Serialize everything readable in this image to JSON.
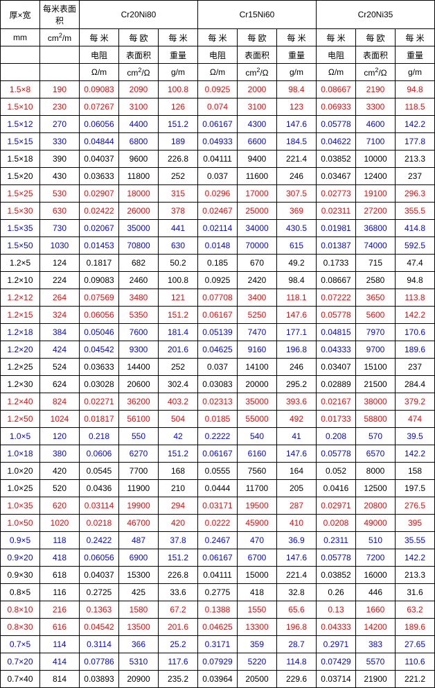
{
  "header": {
    "col1": "厚×宽",
    "col2": "每米表面积",
    "group1": "Cr20Ni80",
    "group2": "Cr15Ni60",
    "group3": "Cr20Ni35",
    "unit1": "mm",
    "unit2_html": "cm<span class='sup'>2</span>/m",
    "sub_a": "每 米",
    "sub_b": "每 欧",
    "sub_c": "每 米",
    "line2_a": "电阻",
    "line2_b": "表面积",
    "line2_c": "重量",
    "line3_a": "Ω/m",
    "line3_b_html": "cm<span class='sup'>2</span>/Ω",
    "line3_c": "g/m"
  },
  "colors": {
    "black": "#000000",
    "red": "#ff0000",
    "blue": "#0000ff"
  },
  "rows": [
    {
      "c": "red",
      "d": [
        "1.5×8",
        "190",
        "0.09083",
        "2090",
        "100.8",
        "0.0925",
        "2000",
        "98.4",
        "0.08667",
        "2190",
        "94.8"
      ]
    },
    {
      "c": "red",
      "d": [
        "1.5×10",
        "230",
        "0.07267",
        "3100",
        "126",
        "0.074",
        "3100",
        "123",
        "0.06933",
        "3300",
        "118.5"
      ]
    },
    {
      "c": "blue",
      "d": [
        "1.5×12",
        "270",
        "0.06056",
        "4400",
        "151.2",
        "0.06167",
        "4300",
        "147.6",
        "0.05778",
        "4600",
        "142.2"
      ]
    },
    {
      "c": "blue",
      "d": [
        "1.5×15",
        "330",
        "0.04844",
        "6800",
        "189",
        "0.04933",
        "6600",
        "184.5",
        "0.04622",
        "7100",
        "177.8"
      ]
    },
    {
      "c": "black",
      "d": [
        "1.5×18",
        "390",
        "0.04037",
        "9600",
        "226.8",
        "0.04111",
        "9400",
        "221.4",
        "0.03852",
        "10000",
        "213.3"
      ]
    },
    {
      "c": "black",
      "d": [
        "1.5×20",
        "430",
        "0.03633",
        "11800",
        "252",
        "0.037",
        "11600",
        "246",
        "0.03467",
        "12400",
        "237"
      ]
    },
    {
      "c": "red",
      "d": [
        "1.5×25",
        "530",
        "0.02907",
        "18000",
        "315",
        "0.0296",
        "17000",
        "307.5",
        "0.02773",
        "19100",
        "296.3"
      ]
    },
    {
      "c": "red",
      "d": [
        "1.5×30",
        "630",
        "0.02422",
        "26000",
        "378",
        "0.02467",
        "25000",
        "369",
        "0.02311",
        "27200",
        "355.5"
      ]
    },
    {
      "c": "blue",
      "d": [
        "1.5×35",
        "730",
        "0.02067",
        "35000",
        "441",
        "0.02114",
        "34000",
        "430.5",
        "0.01981",
        "36800",
        "414.8"
      ]
    },
    {
      "c": "blue",
      "d": [
        "1.5×50",
        "1030",
        "0.01453",
        "70800",
        "630",
        "0.0148",
        "70000",
        "615",
        "0.01387",
        "74000",
        "592.5"
      ]
    },
    {
      "c": "black",
      "d": [
        "1.2×5",
        "124",
        "0.1817",
        "682",
        "50.2",
        "0.185",
        "670",
        "49.2",
        "0.1733",
        "715",
        "47.4"
      ]
    },
    {
      "c": "black",
      "d": [
        "1.2×10",
        "224",
        "0.09083",
        "2460",
        "100.8",
        "0.0925",
        "2420",
        "98.4",
        "0.08667",
        "2580",
        "94.8"
      ]
    },
    {
      "c": "red",
      "d": [
        "1.2×12",
        "264",
        "0.07569",
        "3480",
        "121",
        "0.07708",
        "3400",
        "118.1",
        "0.07222",
        "3650",
        "113.8"
      ]
    },
    {
      "c": "red",
      "d": [
        "1.2×15",
        "324",
        "0.06056",
        "5350",
        "151.2",
        "0.06167",
        "5250",
        "147.6",
        "0.05778",
        "5600",
        "142.2"
      ]
    },
    {
      "c": "blue",
      "d": [
        "1.2×18",
        "384",
        "0.05046",
        "7600",
        "181.4",
        "0.05139",
        "7470",
        "177.1",
        "0.04815",
        "7970",
        "170.6"
      ]
    },
    {
      "c": "blue",
      "d": [
        "1.2×20",
        "424",
        "0.04542",
        "9300",
        "201.6",
        "0.04625",
        "9160",
        "196.8",
        "0.04333",
        "9700",
        "189.6"
      ]
    },
    {
      "c": "black",
      "d": [
        "1.2×25",
        "524",
        "0.03633",
        "14400",
        "252",
        "0.037",
        "14100",
        "246",
        "0.03407",
        "15100",
        "237"
      ]
    },
    {
      "c": "black",
      "d": [
        "1.2×30",
        "624",
        "0.03028",
        "20600",
        "302.4",
        "0.03083",
        "20000",
        "295.2",
        "0.02889",
        "21500",
        "284.4"
      ]
    },
    {
      "c": "red",
      "d": [
        "1.2×40",
        "824",
        "0.02271",
        "36200",
        "403.2",
        "0.02313",
        "35000",
        "393.6",
        "0.02167",
        "38000",
        "379.2"
      ]
    },
    {
      "c": "red",
      "d": [
        "1.2×50",
        "1024",
        "0.01817",
        "56100",
        "504",
        "0.0185",
        "55000",
        "492",
        "0.01733",
        "58800",
        "474"
      ]
    },
    {
      "c": "blue",
      "d": [
        "1.0×5",
        "120",
        "0.218",
        "550",
        "42",
        "0.2222",
        "540",
        "41",
        "0.208",
        "570",
        "39.5"
      ]
    },
    {
      "c": "blue",
      "d": [
        "1.0×18",
        "380",
        "0.0606",
        "6270",
        "151.2",
        "0.06167",
        "6160",
        "147.6",
        "0.05778",
        "6570",
        "142.2"
      ]
    },
    {
      "c": "black",
      "d": [
        "1.0×20",
        "420",
        "0.0545",
        "7700",
        "168",
        "0.0555",
        "7560",
        "164",
        "0.052",
        "8000",
        "158"
      ]
    },
    {
      "c": "black",
      "d": [
        "1.0×25",
        "520",
        "0.0436",
        "11900",
        "210",
        "0.0444",
        "11700",
        "205",
        "0.0416",
        "12500",
        "197.5"
      ]
    },
    {
      "c": "red",
      "d": [
        "1.0×35",
        "620",
        "0.03114",
        "19900",
        "294",
        "0.03171",
        "19500",
        "287",
        "0.02971",
        "20800",
        "276.5"
      ]
    },
    {
      "c": "red",
      "d": [
        "1.0×50",
        "1020",
        "0.0218",
        "46700",
        "420",
        "0.0222",
        "45900",
        "410",
        "0.0208",
        "49000",
        "395"
      ]
    },
    {
      "c": "blue",
      "d": [
        "0.9×5",
        "118",
        "0.2422",
        "487",
        "37.8",
        "0.2467",
        "470",
        "36.9",
        "0.2311",
        "510",
        "35.55"
      ]
    },
    {
      "c": "blue",
      "d": [
        "0.9×20",
        "418",
        "0.06056",
        "6900",
        "151.2",
        "0.06167",
        "6700",
        "147.6",
        "0.05778",
        "7200",
        "142.2"
      ]
    },
    {
      "c": "black",
      "d": [
        "0.9×30",
        "618",
        "0.04037",
        "15300",
        "226.8",
        "0.04111",
        "15000",
        "221.4",
        "0.03852",
        "16000",
        "213.3"
      ]
    },
    {
      "c": "black",
      "d": [
        "0.8×5",
        "116",
        "0.2725",
        "425",
        "33.6",
        "0.2775",
        "418",
        "32.8",
        "0.26",
        "446",
        "31.6"
      ]
    },
    {
      "c": "red",
      "d": [
        "0.8×10",
        "216",
        "0.1363",
        "1580",
        "67.2",
        "0.1388",
        "1550",
        "65.6",
        "0.13",
        "1660",
        "63.2"
      ]
    },
    {
      "c": "red",
      "d": [
        "0.8×30",
        "616",
        "0.04542",
        "13500",
        "201.6",
        "0.04625",
        "13300",
        "196.8",
        "0.04333",
        "14200",
        "189.6"
      ]
    },
    {
      "c": "blue",
      "d": [
        "0.7×5",
        "114",
        "0.3114",
        "366",
        "25.2",
        "0.3171",
        "359",
        "28.7",
        "0.2971",
        "383",
        "27.65"
      ]
    },
    {
      "c": "blue",
      "d": [
        "0.7×20",
        "414",
        "0.07786",
        "5310",
        "117.6",
        "0.07929",
        "5220",
        "114.8",
        "0.07429",
        "5570",
        "110.6"
      ]
    },
    {
      "c": "black",
      "d": [
        "0.7×40",
        "814",
        "0.03893",
        "20900",
        "235.2",
        "0.03964",
        "20500",
        "229.6",
        "0.03714",
        "21900",
        "221.2"
      ]
    }
  ]
}
